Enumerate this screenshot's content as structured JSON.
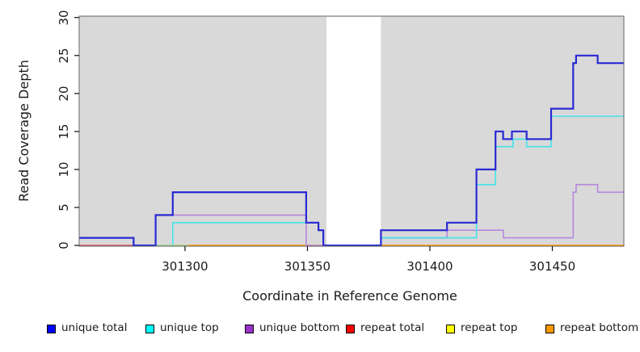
{
  "chart_data": {
    "type": "line",
    "title": "",
    "xlabel": "Coordinate in Reference Genome",
    "ylabel": "Read Coverage Depth",
    "xlim": [
      301256.8,
      301479.2
    ],
    "ylim": [
      0,
      30
    ],
    "x_ticks": [
      301300,
      301350,
      301400,
      301450
    ],
    "y_ticks": [
      0,
      5,
      10,
      15,
      20,
      25,
      30
    ],
    "grid": "off",
    "plot_bg": "#d9d9d9",
    "box_color": "#666666",
    "masked_region": {
      "from": 301357.8,
      "to": 301380,
      "color": "#ffffff"
    },
    "series": [
      {
        "name": "repeat total",
        "color": "#dd2222",
        "width": 1.4,
        "steps": [
          [
            301256.8,
            0
          ],
          [
            301479.2,
            0
          ]
        ]
      },
      {
        "name": "repeat top",
        "color": "#e6e600",
        "width": 1.4,
        "steps": [
          [
            301256.8,
            0
          ],
          [
            301479.2,
            0
          ]
        ]
      },
      {
        "name": "repeat bottom",
        "color": "#ff9e1b",
        "width": 1.8,
        "steps": [
          [
            301256.8,
            0
          ],
          [
            301479.2,
            0
          ]
        ]
      },
      {
        "name": "unique bottom",
        "color": "#b687de",
        "width": 1.6,
        "steps": [
          [
            301256.8,
            0
          ],
          [
            301288,
            4
          ],
          [
            301349.5,
            0
          ],
          [
            301380,
            1
          ],
          [
            301407,
            2
          ],
          [
            301430,
            1
          ],
          [
            301458.5,
            7
          ],
          [
            301459.7,
            8
          ],
          [
            301468.5,
            7
          ],
          [
            301479.2,
            7
          ]
        ]
      },
      {
        "name": "unique top",
        "color": "#42e3e9",
        "width": 1.6,
        "steps": [
          [
            301256.8,
            1
          ],
          [
            301279,
            0
          ],
          [
            301295,
            3
          ],
          [
            301354.5,
            2
          ],
          [
            301356.5,
            0
          ],
          [
            301380,
            1
          ],
          [
            301419,
            8
          ],
          [
            301426.8,
            13
          ],
          [
            301434,
            14
          ],
          [
            301439.5,
            13
          ],
          [
            301449.5,
            17
          ],
          [
            301479.2,
            17
          ]
        ]
      },
      {
        "name": "unique total",
        "color": "#2929d4",
        "width": 2.2,
        "steps": [
          [
            301256.8,
            1
          ],
          [
            301279,
            0
          ],
          [
            301288,
            4
          ],
          [
            301295,
            7
          ],
          [
            301349.5,
            3
          ],
          [
            301354.5,
            2
          ],
          [
            301356.5,
            0
          ],
          [
            301380,
            2
          ],
          [
            301407,
            3
          ],
          [
            301419,
            10
          ],
          [
            301426.8,
            15
          ],
          [
            301429.9,
            14
          ],
          [
            301433.5,
            15
          ],
          [
            301439.5,
            14
          ],
          [
            301449.5,
            18
          ],
          [
            301458.5,
            24
          ],
          [
            301459.7,
            25
          ],
          [
            301468.5,
            24
          ],
          [
            301479.2,
            24
          ]
        ]
      }
    ],
    "baseline_overlays": [
      {
        "name": "baseline-pink-segment",
        "color": "#e0627f",
        "width": 1.6,
        "from": 301256.8,
        "to": 301279.5,
        "value": 0
      },
      {
        "name": "baseline-green-segment",
        "color": "#9fd89b",
        "width": 1.6,
        "from": 301288.0,
        "to": 301301.5,
        "value": 0
      }
    ],
    "legend": [
      {
        "label": "unique total",
        "color": "#0000ff"
      },
      {
        "label": "unique top",
        "color": "#00ffff"
      },
      {
        "label": "unique bottom",
        "color": "#9933cc"
      },
      {
        "label": "repeat total",
        "color": "#ff0000"
      },
      {
        "label": "repeat top",
        "color": "#ffff00"
      },
      {
        "label": "repeat bottom",
        "color": "#ff9900"
      }
    ],
    "legend_position": "bottom"
  }
}
